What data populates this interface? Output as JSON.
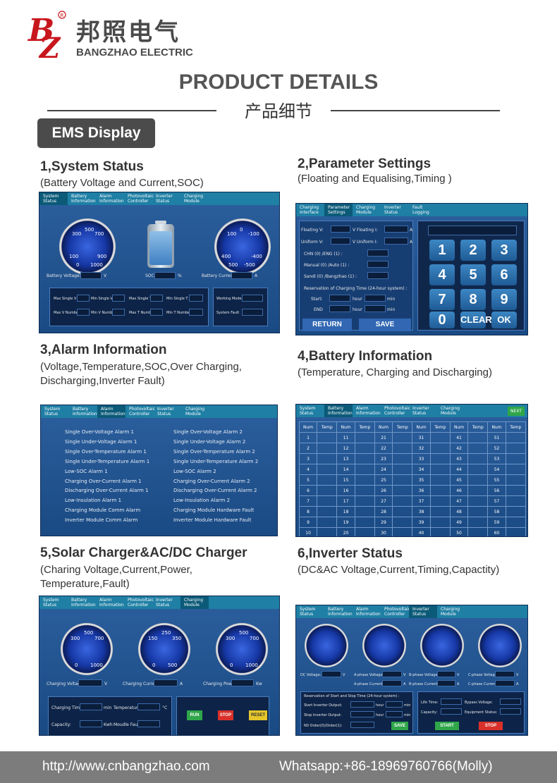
{
  "brand": {
    "cn": "邦照电气",
    "en": "BANGZHAO ELECTRIC",
    "logo_text": "BZ"
  },
  "heading": {
    "title": "PRODUCT DETAILS",
    "subtitle": "产品细节"
  },
  "ems_tag": "EMS Display",
  "tabs_main": [
    "System Status",
    "Battery Information",
    "Alarm Information",
    "Photovoltaic Controller",
    "Inverter Status",
    "Charging Module"
  ],
  "tabs_param": [
    "Charging Interface",
    "Parameter Settings",
    "Charging Module",
    "Inverter Status",
    "Fault Logging"
  ],
  "sections": {
    "s1": {
      "title": "1,System Status",
      "desc": "(Battery Voltage and Current,SOC)"
    },
    "s2": {
      "title": "2,Parameter Settings",
      "desc": "(Floating and Equalising,Timing  )"
    },
    "s3": {
      "title": "3,Alarm Information",
      "desc1": "(Voltage,Temperature,SOC,Over Charging,",
      "desc2": "Discharging,Inverter Fault)"
    },
    "s4": {
      "title": "4,Battery Information",
      "desc": "(Temperature, Charging and Discharging)"
    },
    "s5": {
      "title": "5,Solar Charger&AC/DC Charger",
      "desc1": "(Charing Voltage,Current,Power,",
      "desc2": "Temperature,Fault)"
    },
    "s6": {
      "title": "6,Inverter Status",
      "desc": "(DC&AC Voltage,Current,Timing,Capactity)"
    }
  },
  "system_status": {
    "labels": {
      "bv": "Battery Voltage:",
      "bv_unit": "V",
      "soc": "SOC:",
      "soc_unit": "%",
      "bc": "Battery Current:",
      "bc_unit": "A"
    },
    "gauge_left": [
      "0",
      "100",
      "200",
      "300",
      "400",
      "500",
      "600",
      "700",
      "800",
      "900",
      "1000"
    ],
    "gauge_right": [
      "0",
      "100",
      "200",
      "300",
      "400",
      "500",
      "-100",
      "-200",
      "-300",
      "-400",
      "-500"
    ],
    "bottom": {
      "a": "Max Single V",
      "b": "Min Single V",
      "c": "Max Single T",
      "d": "Min Single T",
      "e": "Max V Number",
      "f": "Min V Number",
      "g": "Max T Number",
      "h": "Min T Number",
      "i": "Working Mode",
      "j": "System Fault"
    }
  },
  "param": {
    "float_v": "Floating V:",
    "float_i": "V Floating I:",
    "uni_v": "Uniform  V:",
    "uni_i": "V  Uniform I:",
    "unit_a": "A",
    "chn": "CHN (0) /ENG (1) :",
    "manual": "Manual (0) /Auto (1) :",
    "sandi": "Sandi (0) /Bangzhao (1) :",
    "reserve": "Reservation of Charging Time (24-hour system) :",
    "start": "Start:",
    "end": "END",
    "hour": "hour",
    "min": "min",
    "return": "RETURN",
    "save": "SAVE",
    "keys": [
      "1",
      "2",
      "3",
      "4",
      "5",
      "6",
      "7",
      "8",
      "9",
      "0",
      "CLEAR",
      "OK"
    ]
  },
  "alarms_left": [
    "Single Over-Voltage Alarm 1",
    "Single Under-Voltage Alarm 1",
    "Single Over-Temperature Alarm 1",
    "Single Under-Temperature Alarm 1",
    "Low-SOC Alarm 1",
    "Charging Over-Current Alarm 1",
    "Discharging Over-Current Alarm 1",
    "Low-Insulation  Alarm 1",
    "Charging Module Comm Alarm",
    "Inverter Module Comm Alarm"
  ],
  "alarms_right": [
    "Single Over-Voltage Alarm 2",
    "Single Under-Voltage Alarm 2",
    "Single Over-Temperature Alarm 2",
    "Single Under-Temperature Alarm 2",
    "Low-SOC Alarm 2",
    "Charging Over-Current Alarm 2",
    "Discharging Over-Current Alarm 2",
    "Low-Insulation  Alarm 2",
    "Charging Module Hardware Fault",
    "Inverter Module Hardware Fault"
  ],
  "battery_info": {
    "next": "NEXT",
    "headers": [
      "Num",
      "Temp",
      "Num",
      "Temp",
      "Num",
      "Temp",
      "Num",
      "Temp",
      "Num",
      "Temp",
      "Num",
      "Temp"
    ],
    "rows": [
      [
        "1",
        "11",
        "21",
        "31",
        "41",
        "51"
      ],
      [
        "2",
        "12",
        "22",
        "32",
        "42",
        "52"
      ],
      [
        "3",
        "13",
        "23",
        "33",
        "43",
        "53"
      ],
      [
        "4",
        "14",
        "24",
        "34",
        "44",
        "54"
      ],
      [
        "5",
        "15",
        "25",
        "35",
        "45",
        "55"
      ],
      [
        "6",
        "16",
        "26",
        "36",
        "46",
        "56"
      ],
      [
        "7",
        "17",
        "27",
        "37",
        "47",
        "57"
      ],
      [
        "8",
        "18",
        "28",
        "38",
        "48",
        "58"
      ],
      [
        "9",
        "19",
        "29",
        "39",
        "49",
        "59"
      ],
      [
        "10",
        "20",
        "30",
        "40",
        "50",
        "60"
      ]
    ]
  },
  "charger": {
    "cv": "Charging Voltage:",
    "cv_unit": "V",
    "cc": "Charging Current:",
    "cc_unit": "A",
    "cp": "Charging Power:",
    "cp_unit": "Kw",
    "time": "Charging Time:",
    "min": "min",
    "temp": "Temperature:",
    "temp_unit": "°C",
    "cap": "Capacity:",
    "cap_unit": "Kwh",
    "fault": "Moudle Fault:",
    "run": "RUN",
    "stop": "STOP",
    "reset": "RESET",
    "g1": [
      "0",
      "100",
      "200",
      "300",
      "400",
      "500",
      "600",
      "700",
      "800",
      "900",
      "1000"
    ],
    "g2": [
      "0",
      "50",
      "100",
      "150",
      "200",
      "250",
      "300",
      "350",
      "400",
      "450",
      "500"
    ],
    "g3": [
      "0",
      "100",
      "200",
      "300",
      "400",
      "500",
      "600",
      "700",
      "800",
      "900",
      "1000"
    ]
  },
  "inverter": {
    "dcv": "DC Voltage:",
    "dcv_unit": "V",
    "av": "A-phase Voltage:",
    "bv": "B-phase Voltage:",
    "cvp": "C-phase Voltage:",
    "ac": "A-phase Current:",
    "bc": "B-phase Current:",
    "cc": "C-phase Current:",
    "v": "V",
    "a": "A",
    "reserve": "Reservation of Start and Stop Time (24-hour system) :",
    "start": "Start Inverter Output:",
    "stop_out": "Stop Inverter Output:",
    "hour": "hour",
    "min": "min",
    "order": "N0 Order(0)/Order(1):",
    "save": "SAVE",
    "life": "Life Time:",
    "bypass": "Bypass Voltage:",
    "capacity": "Capacity:",
    "equip": "Equipment Status:",
    "start_btn": "START",
    "stop_btn": "STOP"
  },
  "footer": {
    "url": "http://www.cnbangzhao.com",
    "whatsapp": "Whatsapp:+86-18969760766(Molly)"
  }
}
